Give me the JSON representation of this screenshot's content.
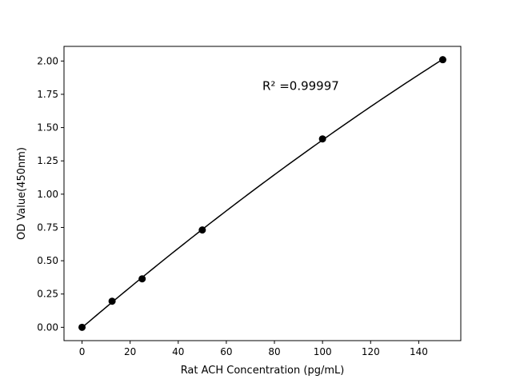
{
  "chart_data": {
    "type": "line",
    "title": "",
    "xlabel": "Rat ACH Concentration (pg/mL)",
    "ylabel": "OD Value(450nm)",
    "xlim": [
      -7.5,
      157.5
    ],
    "ylim": [
      -0.1,
      2.11
    ],
    "xticks": [
      0,
      20,
      40,
      60,
      80,
      100,
      120,
      140
    ],
    "xtick_labels": [
      "0",
      "20",
      "40",
      "60",
      "80",
      "100",
      "120",
      "140"
    ],
    "yticks": [
      0,
      0.25,
      0.5,
      0.75,
      1.0,
      1.25,
      1.5,
      1.75,
      2.0
    ],
    "ytick_labels": [
      "0.00",
      "0.25",
      "0.50",
      "0.75",
      "1.00",
      "1.25",
      "1.50",
      "1.75",
      "2.00"
    ],
    "grid": false,
    "points": {
      "x": [
        0,
        12.5,
        25,
        50,
        100,
        150
      ],
      "y": [
        0.0,
        0.196,
        0.364,
        0.731,
        1.415,
        2.01
      ]
    },
    "fit": "smooth curve through points",
    "annotation": {
      "text": "R² =0.99997",
      "x": 75,
      "y": 1.8
    },
    "color": "#000000"
  }
}
